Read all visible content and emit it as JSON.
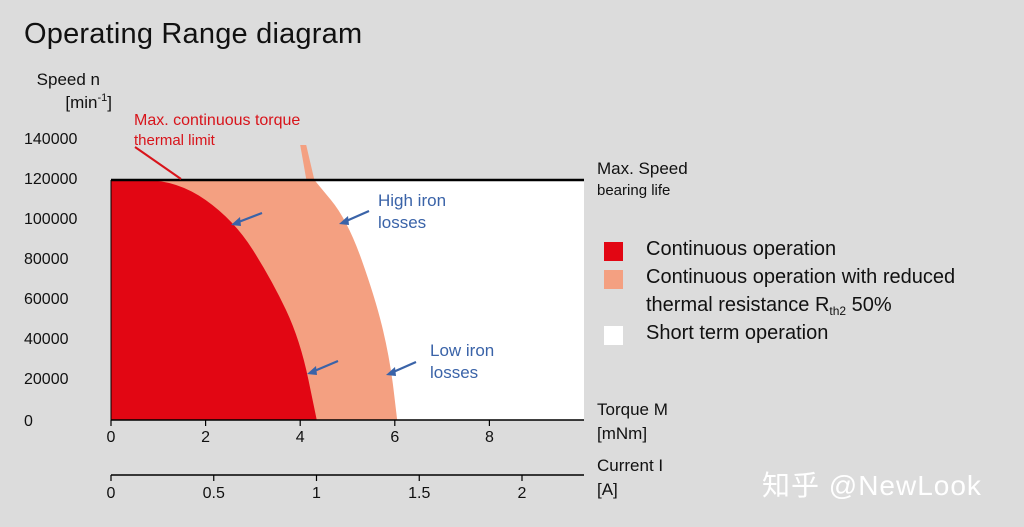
{
  "title": "Operating Range diagram",
  "chart_data": {
    "type": "area",
    "title": "Operating Range diagram",
    "ylabel_line1": "Speed n",
    "ylabel_unit_base": "[min",
    "ylabel_unit_sup": "-1",
    "ylabel_unit_close": "]",
    "ylim": [
      0,
      140000
    ],
    "yticks": [
      "0",
      "20000",
      "40000",
      "60000",
      "80000",
      "100000",
      "120000",
      "140000"
    ],
    "x_torque": {
      "label_line1": "Torque M",
      "label_line2": "[mNm]",
      "xlim": [
        0,
        10
      ],
      "ticks": [
        "0",
        "2",
        "4",
        "6",
        "8"
      ]
    },
    "x_current": {
      "label_line1": "Current I",
      "label_line2": "[A]",
      "ticks": [
        "0",
        "0.5",
        "1",
        "1.5",
        "2"
      ]
    },
    "max_speed": {
      "value": 120000,
      "label_line1": "Max. Speed",
      "label_line2": "bearing life"
    },
    "regions": [
      {
        "name": "Continuous operation",
        "color": "#e20613",
        "boundary": [
          [
            0,
            120000
          ],
          [
            1.4,
            120000
          ],
          [
            2.6,
            100000
          ],
          [
            3.4,
            70000
          ],
          [
            4.0,
            40000
          ],
          [
            4.35,
            0
          ]
        ]
      },
      {
        "name": "Continuous operation with reduced thermal resistance",
        "color": "#f4a081",
        "boundary": [
          [
            4.0,
            130000
          ],
          [
            4.3,
            120000
          ],
          [
            5.0,
            100000
          ],
          [
            5.6,
            60000
          ],
          [
            5.9,
            30000
          ],
          [
            6.05,
            0
          ]
        ]
      },
      {
        "name": "Short term operation",
        "color": "#ffffff"
      }
    ],
    "annotations": {
      "thermal_limit_line1": "Max. continuous torque",
      "thermal_limit_line2": "thermal limit",
      "high_iron_line1": "High iron",
      "high_iron_line2": "losses",
      "low_iron_line1": "Low iron",
      "low_iron_line2": "losses"
    },
    "legend": {
      "placement": "right",
      "items": [
        {
          "label": "Continuous operation",
          "color": "#e20613"
        },
        {
          "label": "Continuous operation with reduced",
          "color": "#f4a081"
        },
        {
          "label": "Short term operation",
          "color": "#ffffff"
        }
      ],
      "thermal_text": "thermal resistance R",
      "thermal_sub": "th2",
      "thermal_suffix": " 50%"
    }
  },
  "watermark": "知乎 @NewLook"
}
